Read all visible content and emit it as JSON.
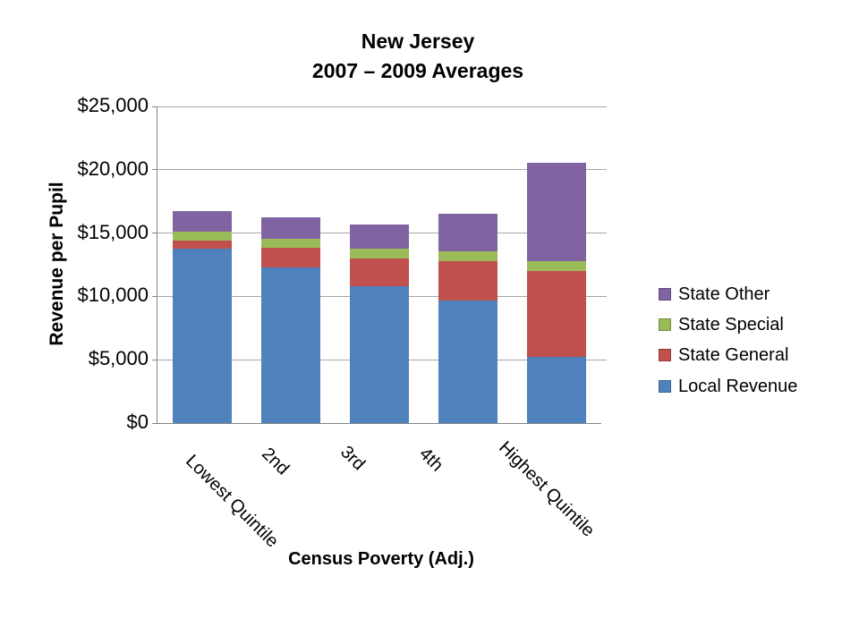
{
  "title": {
    "line1": "New Jersey",
    "line2": "2007 – 2009 Averages"
  },
  "chart_data": {
    "type": "bar",
    "stacked": true,
    "title": "New Jersey 2007 – 2009 Averages",
    "categories": [
      "Lowest Quintile",
      "2nd",
      "3rd",
      "4th",
      "Highest Quintile"
    ],
    "series": [
      {
        "name": "Local Revenue",
        "color": "#4F81BD",
        "values": [
          13800,
          12300,
          10800,
          9700,
          5200
        ]
      },
      {
        "name": "State General",
        "color": "#C0504D",
        "values": [
          600,
          1550,
          2200,
          3100,
          6800
        ]
      },
      {
        "name": "State Special",
        "color": "#9BBB59",
        "values": [
          700,
          700,
          800,
          750,
          750
        ]
      },
      {
        "name": "State Other",
        "color": "#8064A2",
        "values": [
          1650,
          1700,
          1900,
          2950,
          7800
        ]
      }
    ],
    "xlabel": "Census Poverty (Adj.)",
    "ylabel": "Revenue per Pupil",
    "ylim": [
      0,
      25000
    ],
    "ytick_step": 5000,
    "ytick_labels": [
      "$0",
      "$5,000",
      "$10,000",
      "$15,000",
      "$20,000",
      "$25,000"
    ],
    "grid": true,
    "legend_position": "right",
    "legend_order_top_to_bottom": [
      "State Other",
      "State Special",
      "State General",
      "Local Revenue"
    ]
  },
  "colors": {
    "background": "#FFFFFF",
    "gridline": "#A6A6A6",
    "axis_line": "#848484",
    "text": "#000000"
  }
}
